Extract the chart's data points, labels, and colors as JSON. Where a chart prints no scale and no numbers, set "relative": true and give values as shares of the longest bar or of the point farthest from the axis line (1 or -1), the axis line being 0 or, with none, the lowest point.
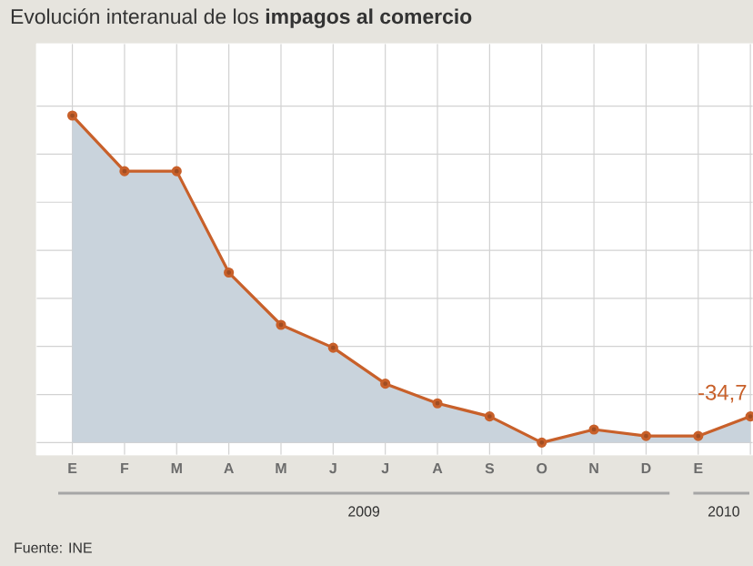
{
  "chart_data": {
    "type": "area",
    "title": "Evolución interanual de los **impagos al comercio**",
    "categories": [
      "E",
      "F",
      "M",
      "A",
      "M",
      "J",
      "J",
      "A",
      "S",
      "O",
      "N",
      "D",
      "E",
      null
    ],
    "series": [
      {
        "color": "#c8602a",
        "values": [
          1.0,
          0.83,
          0.83,
          0.52,
          0.36,
          0.29,
          0.18,
          0.12,
          0.08,
          0.0,
          0.04,
          0.02,
          0.02,
          0.08
        ]
      }
    ],
    "relative": true,
    "marker": "circle",
    "grid": true,
    "annotations": [
      "-34,7",
      "2009",
      "2010",
      "Fuente: INE"
    ]
  }
}
